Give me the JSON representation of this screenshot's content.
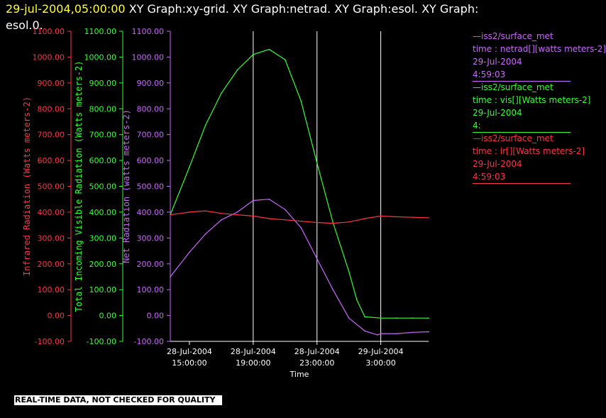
{
  "header": {
    "date": "29-jul-2004,05:00:00",
    "rest": "XY Graph:xy-grid.  XY Graph:netrad.  XY Graph:esol.  XY Graph:",
    "line2": "esol.0."
  },
  "colors": {
    "red": "#ff3344",
    "green": "#33ff33",
    "purple": "#cc66ff",
    "grid": "#ffffff",
    "background": "#000000"
  },
  "legend": [
    {
      "id": "vis",
      "color": "#cc66ff",
      "lines": [
        "—iss2/surface_met",
        "time : netrad[][watts meters-2]",
        "29-Jul-2004",
        "4:59:03"
      ]
    },
    {
      "id": "netrad",
      "color": "#33ff33",
      "lines": [
        "—iss2/surface_met",
        "time : vis[][Watts meters-2]",
        "29-Jul-2004",
        "4:"
      ]
    },
    {
      "id": "ir",
      "color": "#ff3344",
      "lines": [
        "—iss2/surface_met",
        "time : ir[][Watts meters-2]",
        "29-Jul-2004",
        "4:59:03"
      ]
    }
  ],
  "footer_note": "REAL-TIME DATA, NOT CHECKED FOR QUALITY",
  "chart_data": {
    "type": "line",
    "xlabel": "Time",
    "x_ticks": [
      {
        "date": "28-Jul-2004",
        "time": "15:00:00",
        "hour": 15
      },
      {
        "date": "28-Jul-2004",
        "time": "19:00:00",
        "hour": 19
      },
      {
        "date": "28-Jul-2004",
        "time": "23:00:00",
        "hour": 23
      },
      {
        "date": "29-Jul-2004",
        "time": "3:00:00",
        "hour": 27
      }
    ],
    "xlim_hours": [
      13.8,
      30.0
    ],
    "grid_vertical_hours": [
      19,
      23,
      27
    ],
    "y_ticks": [
      "-100.00",
      "0.00",
      "100.00",
      "200.00",
      "300.00",
      "400.00",
      "500.00",
      "600.00",
      "700.00",
      "800.00",
      "900.00",
      "1000.00",
      "1100.00"
    ],
    "ylim": [
      -100,
      1100
    ],
    "axes": [
      {
        "id": "ir",
        "label": "Infrared Radiation (Watts meters-2)",
        "color": "#ff3344"
      },
      {
        "id": "vis",
        "label": "Total Incoming Visible Radiation (Watts meters-2)",
        "color": "#33ff33"
      },
      {
        "id": "net",
        "label": "Net Radiation (watts meters-2)",
        "color": "#cc66ff"
      }
    ],
    "series": [
      {
        "id": "vis",
        "color": "#33ff33",
        "x": [
          13.8,
          15,
          16,
          17,
          18,
          19,
          20,
          21,
          22,
          23,
          24,
          25,
          25.5,
          26,
          27,
          28,
          29,
          30.0
        ],
        "y": [
          390,
          575,
          735,
          860,
          950,
          1010,
          1030,
          990,
          830,
          590,
          360,
          170,
          60,
          -5,
          -10,
          -10,
          -10,
          -10
        ]
      },
      {
        "id": "net",
        "color": "#cc66ff",
        "x": [
          13.8,
          15,
          16,
          17,
          18,
          19,
          20,
          21,
          22,
          23,
          24,
          25,
          26,
          26.8,
          27,
          28,
          29,
          30.0
        ],
        "y": [
          150,
          245,
          315,
          370,
          400,
          445,
          450,
          410,
          340,
          220,
          100,
          -10,
          -60,
          -75,
          -70,
          -70,
          -65,
          -63
        ]
      },
      {
        "id": "ir",
        "color": "#ff3344",
        "x": [
          13.8,
          15,
          16,
          17,
          18,
          19,
          20,
          21,
          22,
          23,
          24,
          25,
          26,
          27,
          28,
          29,
          30.0
        ],
        "y": [
          390,
          400,
          405,
          395,
          390,
          385,
          375,
          370,
          365,
          360,
          357,
          362,
          375,
          385,
          382,
          380,
          378
        ]
      }
    ]
  }
}
